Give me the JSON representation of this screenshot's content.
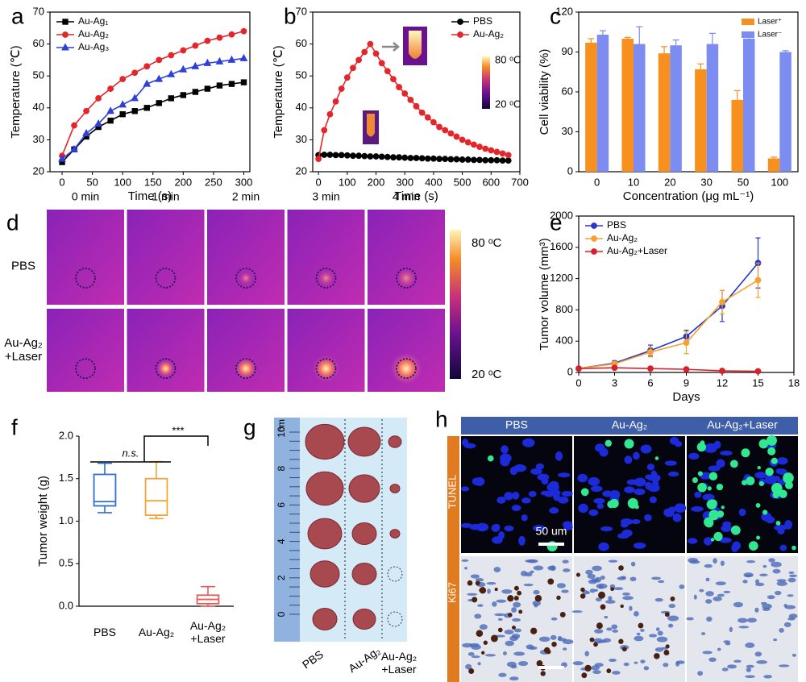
{
  "chart_data": [
    {
      "type": "line",
      "label": "a",
      "xlabel": "Time (s)",
      "ylabel": "Temperature (℃)",
      "x": [
        0,
        20,
        40,
        60,
        80,
        100,
        120,
        140,
        160,
        180,
        200,
        220,
        240,
        260,
        280,
        300
      ],
      "xlim": [
        -20,
        310
      ],
      "xticks": [
        0,
        50,
        100,
        150,
        200,
        250,
        300
      ],
      "ylim": [
        20,
        70
      ],
      "yticks": [
        20,
        30,
        40,
        50,
        60,
        70
      ],
      "legend": "upper left",
      "series": [
        {
          "name": "Au-Ag₁",
          "color": "#000000",
          "marker": "square",
          "values": [
            23,
            27,
            31,
            34,
            36,
            38,
            39,
            40,
            41.5,
            43,
            44,
            45,
            46,
            47,
            47.5,
            48
          ]
        },
        {
          "name": "Au-Ag₂",
          "color": "#e3262b",
          "marker": "circle",
          "values": [
            25,
            34.5,
            39,
            43,
            46,
            49,
            51,
            53,
            55,
            56.5,
            58,
            59.5,
            61,
            62,
            63,
            64
          ]
        },
        {
          "name": "Au-Ag₃",
          "color": "#2f3fd8",
          "marker": "triangle",
          "values": [
            24,
            27,
            32,
            35,
            39,
            41,
            43,
            47.5,
            49,
            50.5,
            52,
            53,
            54,
            54.5,
            55,
            55.5
          ]
        }
      ]
    },
    {
      "type": "line",
      "label": "b",
      "xlabel": "Time (s)",
      "ylabel": "Temperature (℃)",
      "x": [
        0,
        20,
        40,
        60,
        80,
        100,
        120,
        140,
        160,
        180,
        200,
        220,
        240,
        260,
        280,
        300,
        320,
        340,
        360,
        380,
        400,
        420,
        440,
        460,
        480,
        500,
        520,
        540,
        560,
        580,
        600,
        620,
        640,
        660
      ],
      "xlim": [
        -20,
        700
      ],
      "xticks": [
        0,
        100,
        200,
        300,
        400,
        500,
        600,
        700
      ],
      "ylim": [
        20,
        70
      ],
      "yticks": [
        20,
        30,
        40,
        50,
        60,
        70
      ],
      "legend": "upper right",
      "colorbar_labels": [
        "80 ᵒC",
        "20 ᵒC"
      ],
      "series": [
        {
          "name": "PBS",
          "color": "#000000",
          "marker": "circle",
          "values": [
            25.2,
            25.3,
            25.3,
            25.2,
            25.2,
            25.1,
            25.0,
            25.0,
            24.9,
            24.8,
            24.8,
            24.7,
            24.6,
            24.5,
            24.5,
            24.4,
            24.3,
            24.3,
            24.2,
            24.1,
            24.1,
            24.0,
            24.0,
            23.9,
            23.9,
            23.8,
            23.8,
            23.7,
            23.7,
            23.6,
            23.6,
            23.6,
            23.5,
            23.5
          ]
        },
        {
          "name": "Au-Ag₂",
          "color": "#e3262b",
          "marker": "circle",
          "values": [
            24,
            33,
            38,
            42,
            46,
            49.5,
            52.5,
            55,
            57.5,
            60,
            57,
            54,
            51.5,
            49,
            46.5,
            44.5,
            42.5,
            40.5,
            38.5,
            37,
            35.5,
            34,
            33,
            32,
            31,
            30,
            29.2,
            28.5,
            27.8,
            27.2,
            26.7,
            26.2,
            25.7,
            25.2
          ]
        }
      ]
    },
    {
      "type": "bar",
      "label": "c",
      "xlabel": "Concentration (μg mL⁻¹)",
      "ylabel": "Cell viability (%)",
      "categories": [
        "0",
        "10",
        "20",
        "30",
        "50",
        "100"
      ],
      "ylim": [
        0,
        120
      ],
      "yticks": [
        0,
        30,
        60,
        90,
        120
      ],
      "legend": "upper right",
      "series": [
        {
          "name": "Laser⁺",
          "color": "#f7901e",
          "values": [
            97,
            100,
            89,
            77,
            54,
            10
          ],
          "errors": [
            3,
            1,
            5,
            4,
            7,
            1
          ]
        },
        {
          "name": "Laser⁻",
          "color": "#7d8cf0",
          "values": [
            103,
            96,
            95,
            96,
            100,
            90
          ],
          "errors": [
            3,
            13,
            4,
            8,
            1,
            1
          ]
        }
      ]
    },
    {
      "type": "line",
      "label": "e",
      "xlabel": "Days",
      "ylabel": "Tumor volume (mm³)",
      "x": [
        0,
        3,
        6,
        9,
        12,
        15
      ],
      "xlim": [
        0,
        18
      ],
      "xticks": [
        0,
        3,
        6,
        9,
        12,
        15,
        18
      ],
      "ylim": [
        0,
        2000
      ],
      "yticks": [
        0,
        400,
        800,
        1200,
        1600,
        2000
      ],
      "legend": "upper left",
      "series": [
        {
          "name": "PBS",
          "color": "#2536c8",
          "marker": "circle",
          "values": [
            50,
            120,
            280,
            460,
            850,
            1400
          ],
          "errors": [
            10,
            30,
            70,
            80,
            200,
            320
          ]
        },
        {
          "name": "Au-Ag₂",
          "color": "#f5a030",
          "marker": "circle",
          "values": [
            50,
            110,
            260,
            380,
            900,
            1180
          ],
          "errors": [
            10,
            30,
            60,
            140,
            150,
            220
          ]
        },
        {
          "name": "Au-Ag₂+Laser",
          "color": "#d8202a",
          "marker": "circle",
          "values": [
            50,
            60,
            50,
            40,
            20,
            15
          ],
          "errors": [
            5,
            10,
            10,
            10,
            5,
            5
          ]
        }
      ]
    },
    {
      "type": "box",
      "label": "f",
      "ylabel": "Tumor weight (g)",
      "categories": [
        "PBS",
        "Au-Ag₂",
        "Au-Ag₂\n+Laser"
      ],
      "colors": [
        "#2f6fd8",
        "#f2a33a",
        "#e85a5a"
      ],
      "ylim": [
        0,
        2
      ],
      "yticks": [
        {
          "value": 0,
          "label": "0.0"
        },
        0.5,
        {
          "value": 1,
          "label": "1.0"
        },
        1.5,
        {
          "value": 2,
          "label": "2.0"
        }
      ],
      "stats": [
        {
          "min": 1.1,
          "q1": 1.18,
          "median": 1.23,
          "q3": 1.55,
          "max": 1.68
        },
        {
          "min": 1.03,
          "q1": 1.07,
          "median": 1.24,
          "q3": 1.5,
          "max": 1.7
        },
        {
          "min": 0.0,
          "q1": 0.03,
          "median": 0.08,
          "q3": 0.13,
          "max": 0.23
        }
      ],
      "annotations": [
        "n.s.",
        "***"
      ]
    }
  ],
  "panel_d": {
    "label": "d",
    "columns": [
      "0 min",
      "1 min",
      "2 min",
      "3 min",
      "4 min"
    ],
    "rows": [
      "PBS",
      "Au-Ag₂\n+Laser"
    ],
    "colorbar_labels": [
      "80 ᵒC",
      "20 ᵒC"
    ]
  },
  "panel_g": {
    "label": "g",
    "unit": "cm",
    "ruler_labels": [
      "0",
      "2",
      "4",
      "6",
      "8",
      "10"
    ],
    "columns": [
      "PBS",
      "Au-Ag₂",
      "Au-Ag₂\n+Laser"
    ]
  },
  "panel_h": {
    "label": "h",
    "columns": [
      "PBS",
      "Au-Ag₂",
      "Au-Ag₂+Laser"
    ],
    "rows": [
      "TUNEL",
      "Ki67"
    ],
    "scale_bar": "50 um"
  }
}
